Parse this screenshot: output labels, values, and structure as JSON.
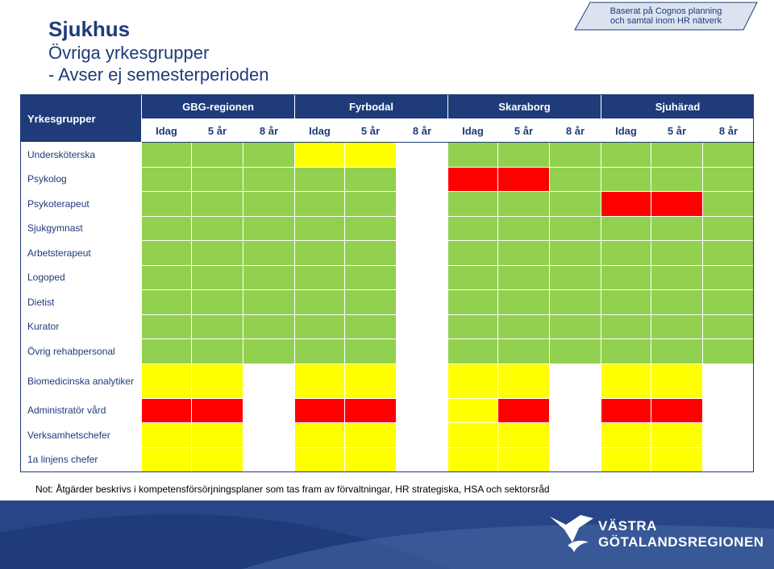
{
  "title": {
    "main": "Sjukhus",
    "line2": "Övriga yrkesgrupper",
    "line3": "- Avser ej semesterperioden"
  },
  "badge": {
    "line1": "Baserat på Cognos planning",
    "line2": "och samtal inom HR nätverk"
  },
  "table": {
    "corner_label": "Yrkesgrupper",
    "regions": [
      "GBG-regionen",
      "Fyrbodal",
      "Skaraborg",
      "Sjuhärad"
    ],
    "periods": [
      "Idag",
      "5 år",
      "8 år",
      "Idag",
      "5 år",
      "8 år",
      "Idag",
      "5 år",
      "8 år",
      "Idag",
      "5 år",
      "8 år"
    ],
    "rows": [
      {
        "label": "Undersköterska",
        "cells": [
          "g",
          "g",
          "g",
          "y",
          "y",
          "w",
          "g",
          "g",
          "g",
          "g",
          "g",
          "g"
        ]
      },
      {
        "label": "Psykolog",
        "cells": [
          "g",
          "g",
          "g",
          "g",
          "g",
          "w",
          "r",
          "r",
          "g",
          "g",
          "g",
          "g"
        ]
      },
      {
        "label": "Psykoterapeut",
        "cells": [
          "g",
          "g",
          "g",
          "g",
          "g",
          "w",
          "g",
          "g",
          "g",
          "r",
          "r",
          "g"
        ]
      },
      {
        "label": "Sjukgymnast",
        "cells": [
          "g",
          "g",
          "g",
          "g",
          "g",
          "w",
          "g",
          "g",
          "g",
          "g",
          "g",
          "g"
        ]
      },
      {
        "label": "Arbetsterapeut",
        "cells": [
          "g",
          "g",
          "g",
          "g",
          "g",
          "w",
          "g",
          "g",
          "g",
          "g",
          "g",
          "g"
        ]
      },
      {
        "label": "Logoped",
        "cells": [
          "g",
          "g",
          "g",
          "g",
          "g",
          "w",
          "g",
          "g",
          "g",
          "g",
          "g",
          "g"
        ]
      },
      {
        "label": "Dietist",
        "cells": [
          "g",
          "g",
          "g",
          "g",
          "g",
          "w",
          "g",
          "g",
          "g",
          "g",
          "g",
          "g"
        ]
      },
      {
        "label": "Kurator",
        "cells": [
          "g",
          "g",
          "g",
          "g",
          "g",
          "w",
          "g",
          "g",
          "g",
          "g",
          "g",
          "g"
        ]
      },
      {
        "label": "Övrig rehabpersonal",
        "cells": [
          "g",
          "g",
          "g",
          "g",
          "g",
          "w",
          "g",
          "g",
          "g",
          "g",
          "g",
          "g"
        ]
      },
      {
        "label": "Biomedicinska analytiker",
        "cells": [
          "y",
          "y",
          "w",
          "y",
          "y",
          "w",
          "y",
          "y",
          "w",
          "y",
          "y",
          "w"
        ]
      },
      {
        "label": "Administratör vård",
        "cells": [
          "r",
          "r",
          "w",
          "r",
          "r",
          "w",
          "y",
          "r",
          "w",
          "r",
          "r",
          "w"
        ]
      },
      {
        "label": "Verksamhetschefer",
        "cells": [
          "y",
          "y",
          "w",
          "y",
          "y",
          "w",
          "y",
          "y",
          "w",
          "y",
          "y",
          "w"
        ]
      },
      {
        "label": "1a linjens chefer",
        "cells": [
          "y",
          "y",
          "w",
          "y",
          "y",
          "w",
          "y",
          "y",
          "w",
          "y",
          "y",
          "w"
        ]
      }
    ],
    "colors": {
      "g": "#92d050",
      "y": "#ffff00",
      "r": "#ff0000",
      "w": "#ffffff"
    }
  },
  "note": "Not: Åtgärder beskrivs i kompetensförsörjningsplaner som tas fram av förvaltningar, HR strategiska, HSA och sektorsråd",
  "logo": {
    "line1": "VÄSTRA",
    "line2": "GÖTALANDSREGIONEN"
  },
  "brand_color": "#1f3b7a"
}
